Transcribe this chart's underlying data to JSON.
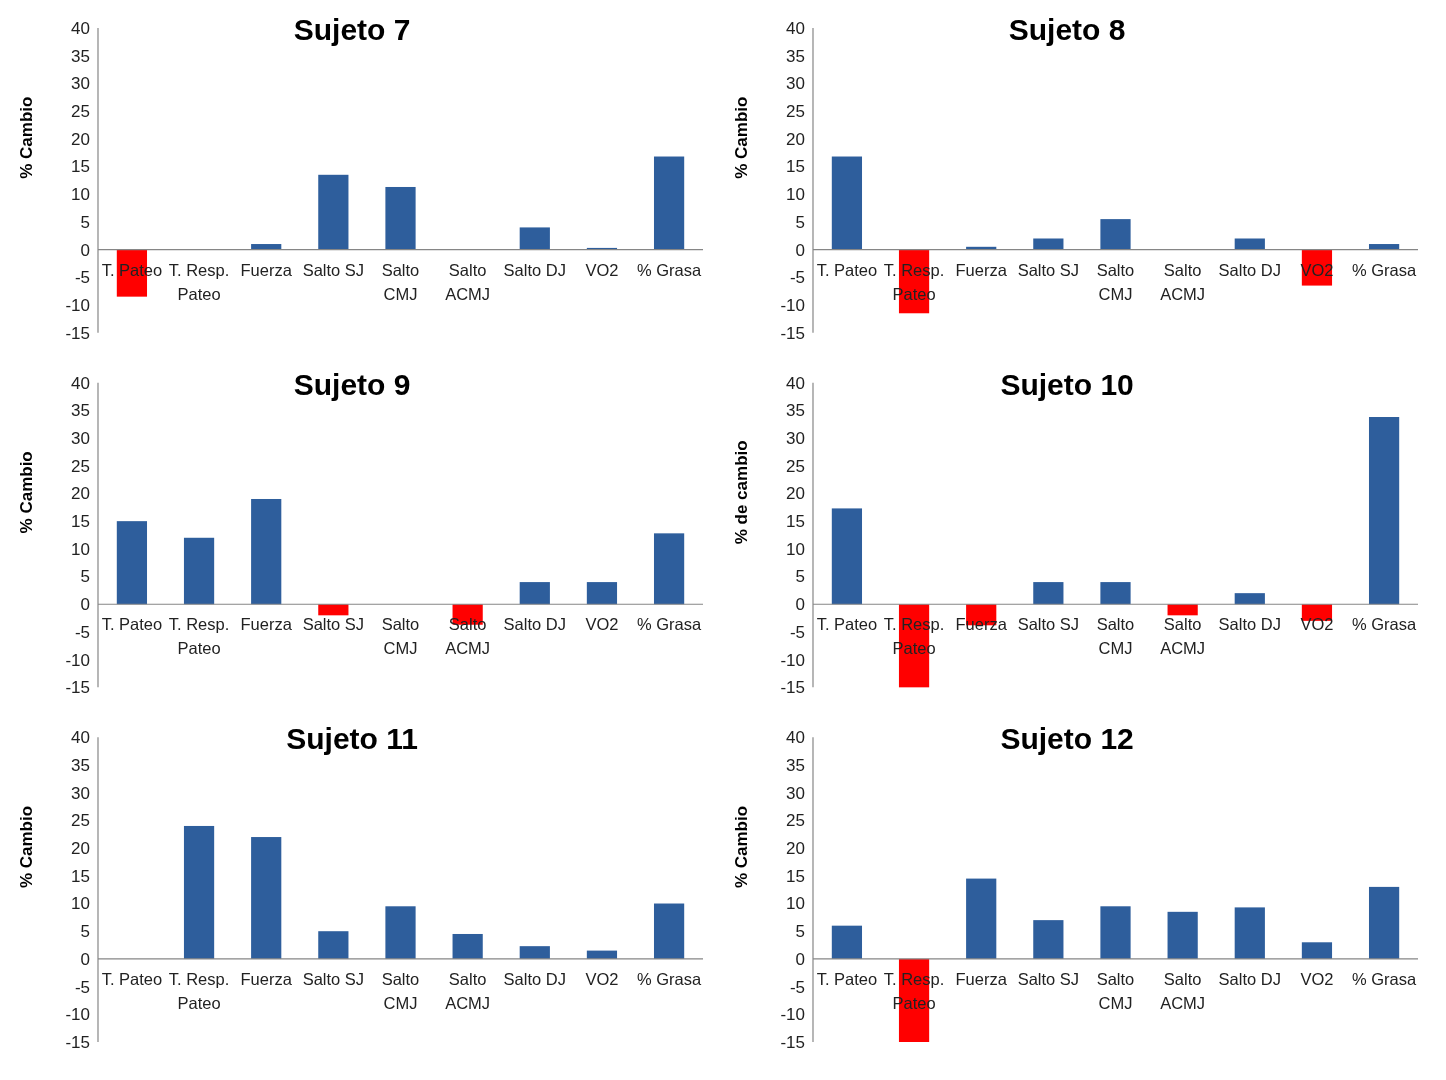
{
  "chart_data": [
    {
      "type": "bar",
      "title": "Sujeto 7",
      "ylabel": "% Cambio",
      "categories": [
        "T. Pateo",
        "T. Resp. Pateo",
        "Fuerza",
        "Salto SJ",
        "Salto CMJ",
        "Salto ACMJ",
        "Salto DJ",
        "VO2",
        "% Grasa"
      ],
      "values": [
        -8.5,
        0,
        1,
        13.5,
        11.3,
        0,
        4,
        0.3,
        16.8
      ],
      "colors": [
        "#ff0000",
        "#2e5e9c",
        "#2e5e9c",
        "#2e5e9c",
        "#2e5e9c",
        "#2e5e9c",
        "#2e5e9c",
        "#2e5e9c",
        "#2e5e9c"
      ],
      "ylim": [
        -15,
        40
      ],
      "yticks": [
        -15,
        -10,
        -5,
        0,
        5,
        10,
        15,
        20,
        25,
        30,
        35,
        40
      ],
      "grid": false
    },
    {
      "type": "bar",
      "title": "Sujeto 8",
      "ylabel": "% Cambio",
      "categories": [
        "T. Pateo",
        "T. Resp. Pateo",
        "Fuerza",
        "Salto SJ",
        "Salto CMJ",
        "Salto ACMJ",
        "Salto DJ",
        "VO2",
        "% Grasa"
      ],
      "values": [
        16.8,
        -11.5,
        0.5,
        2,
        5.5,
        0,
        2,
        -6.5,
        1
      ],
      "colors": [
        "#2e5e9c",
        "#ff0000",
        "#2e5e9c",
        "#2e5e9c",
        "#2e5e9c",
        "#2e5e9c",
        "#2e5e9c",
        "#ff0000",
        "#2e5e9c"
      ],
      "ylim": [
        -15,
        40
      ],
      "yticks": [
        -15,
        -10,
        -5,
        0,
        5,
        10,
        15,
        20,
        25,
        30,
        35,
        40
      ],
      "grid": false
    },
    {
      "type": "bar",
      "title": "Sujeto 9",
      "ylabel": "% Cambio",
      "categories": [
        "T. Pateo",
        "T. Resp. Pateo",
        "Fuerza",
        "Salto SJ",
        "Salto CMJ",
        "Salto ACMJ",
        "Salto DJ",
        "VO2",
        "% Grasa"
      ],
      "values": [
        15,
        12,
        19,
        -2,
        0,
        -3.7,
        4,
        4,
        12.8
      ],
      "colors": [
        "#2e5e9c",
        "#2e5e9c",
        "#2e5e9c",
        "#ff0000",
        "#2e5e9c",
        "#ff0000",
        "#2e5e9c",
        "#2e5e9c",
        "#2e5e9c"
      ],
      "ylim": [
        -15,
        40
      ],
      "yticks": [
        -15,
        -10,
        -5,
        0,
        5,
        10,
        15,
        20,
        25,
        30,
        35,
        40
      ],
      "grid": false
    },
    {
      "type": "bar",
      "title": "Sujeto 10",
      "ylabel": "% de cambio",
      "categories": [
        "T. Pateo",
        "T. Resp. Pateo",
        "Fuerza",
        "Salto SJ",
        "Salto CMJ",
        "Salto ACMJ",
        "Salto DJ",
        "VO2",
        "% Grasa"
      ],
      "values": [
        17.3,
        -15,
        -3.8,
        4,
        4,
        -2,
        2,
        -3,
        33.8
      ],
      "colors": [
        "#2e5e9c",
        "#ff0000",
        "#ff0000",
        "#2e5e9c",
        "#2e5e9c",
        "#ff0000",
        "#2e5e9c",
        "#ff0000",
        "#2e5e9c"
      ],
      "ylim": [
        -15,
        40
      ],
      "yticks": [
        -15,
        -10,
        -5,
        0,
        5,
        10,
        15,
        20,
        25,
        30,
        35,
        40
      ],
      "grid": false
    },
    {
      "type": "bar",
      "title": "Sujeto 11",
      "ylabel": "% Cambio",
      "categories": [
        "T. Pateo",
        "T. Resp. Pateo",
        "Fuerza",
        "Salto SJ",
        "Salto CMJ",
        "Salto ACMJ",
        "Salto DJ",
        "VO2",
        "% Grasa"
      ],
      "values": [
        0,
        24,
        22,
        5,
        9.5,
        4.5,
        2.3,
        1.5,
        10
      ],
      "colors": [
        "#2e5e9c",
        "#2e5e9c",
        "#2e5e9c",
        "#2e5e9c",
        "#2e5e9c",
        "#2e5e9c",
        "#2e5e9c",
        "#2e5e9c",
        "#2e5e9c"
      ],
      "ylim": [
        -15,
        40
      ],
      "yticks": [
        -15,
        -10,
        -5,
        0,
        5,
        10,
        15,
        20,
        25,
        30,
        35,
        40
      ],
      "grid": false
    },
    {
      "type": "bar",
      "title": "Sujeto 12",
      "ylabel": "% Cambio",
      "categories": [
        "T. Pateo",
        "T. Resp. Pateo",
        "Fuerza",
        "Salto SJ",
        "Salto CMJ",
        "Salto ACMJ",
        "Salto DJ",
        "VO2",
        "% Grasa"
      ],
      "values": [
        6,
        -15,
        14.5,
        7,
        9.5,
        8.5,
        9.3,
        3,
        13
      ],
      "colors": [
        "#2e5e9c",
        "#ff0000",
        "#2e5e9c",
        "#2e5e9c",
        "#2e5e9c",
        "#2e5e9c",
        "#2e5e9c",
        "#2e5e9c",
        "#2e5e9c"
      ],
      "ylim": [
        -15,
        40
      ],
      "yticks": [
        -15,
        -10,
        -5,
        0,
        5,
        10,
        15,
        20,
        25,
        30,
        35,
        40
      ],
      "grid": false
    }
  ]
}
